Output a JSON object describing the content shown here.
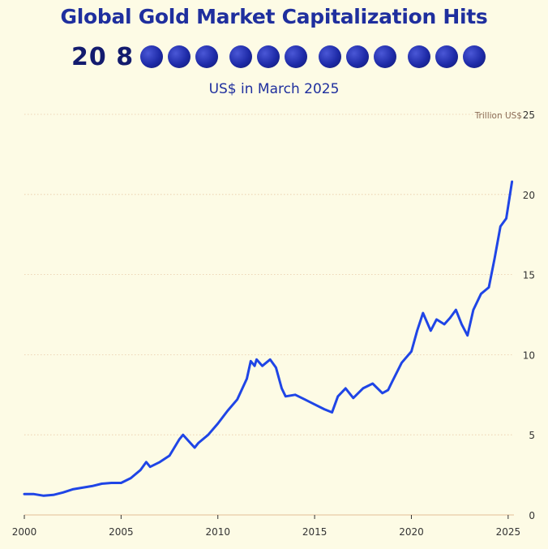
{
  "header": {
    "title": "Global Gold Market Capitalization Hits",
    "big_number_digits": "20 8",
    "big_number_dot_groups": [
      3,
      3,
      3,
      3
    ],
    "subtitle": "US$ in March 2025"
  },
  "colors": {
    "background": "#fdfbe5",
    "title": "#1f2f9e",
    "line": "#1f45e6",
    "gridline": "#e8c9a8",
    "axis_text": "#333333",
    "unit_text": "#8a6b55"
  },
  "chart_data": {
    "type": "line",
    "title": "",
    "xlabel": "",
    "ylabel": "Trillion US$",
    "xlim": [
      2000,
      2025.3
    ],
    "ylim": [
      0,
      25
    ],
    "x_ticks": [
      2000,
      2005,
      2010,
      2015,
      2020,
      2025
    ],
    "y_ticks": [
      0,
      5,
      10,
      15,
      20,
      25
    ],
    "x_tick_labels": [
      "2000",
      "2005",
      "2010",
      "2015",
      "2020",
      "2025"
    ],
    "y_tick_labels": [
      "0",
      "5",
      "10",
      "15",
      "20",
      "25"
    ],
    "y_axis_position": "right",
    "grid": "horizontal",
    "series": [
      {
        "x": [
          2000.0,
          2000.5,
          2001.0,
          2001.5,
          2002.0,
          2002.5,
          2003.0,
          2003.5,
          2004.0,
          2004.5,
          2005.0,
          2005.5,
          2006.0,
          2006.3,
          2006.5,
          2007.0,
          2007.5,
          2008.0,
          2008.2,
          2008.5,
          2008.8,
          2009.0,
          2009.5,
          2010.0,
          2010.5,
          2011.0,
          2011.5,
          2011.7,
          2011.9,
          2012.0,
          2012.3,
          2012.7,
          2013.0,
          2013.3,
          2013.5,
          2014.0,
          2014.5,
          2015.0,
          2015.5,
          2015.9,
          2016.2,
          2016.6,
          2017.0,
          2017.5,
          2018.0,
          2018.5,
          2018.8,
          2019.0,
          2019.5,
          2020.0,
          2020.3,
          2020.6,
          2021.0,
          2021.3,
          2021.7,
          2022.0,
          2022.3,
          2022.6,
          2022.9,
          2023.2,
          2023.6,
          2024.0,
          2024.3,
          2024.6,
          2024.9,
          2025.2
        ],
        "values": [
          1.3,
          1.3,
          1.2,
          1.25,
          1.4,
          1.6,
          1.7,
          1.8,
          1.95,
          2.0,
          2.0,
          2.3,
          2.8,
          3.3,
          3.0,
          3.3,
          3.7,
          4.7,
          5.0,
          4.6,
          4.2,
          4.5,
          5.0,
          5.7,
          6.5,
          7.2,
          8.5,
          9.6,
          9.3,
          9.7,
          9.3,
          9.7,
          9.2,
          7.9,
          7.4,
          7.5,
          7.2,
          6.9,
          6.6,
          6.4,
          7.4,
          7.9,
          7.3,
          7.9,
          8.2,
          7.6,
          7.8,
          8.3,
          9.5,
          10.2,
          11.5,
          12.6,
          11.5,
          12.2,
          11.9,
          12.3,
          12.8,
          11.9,
          11.2,
          12.8,
          13.8,
          14.2,
          16.0,
          18.0,
          18.5,
          20.8
        ]
      }
    ]
  }
}
